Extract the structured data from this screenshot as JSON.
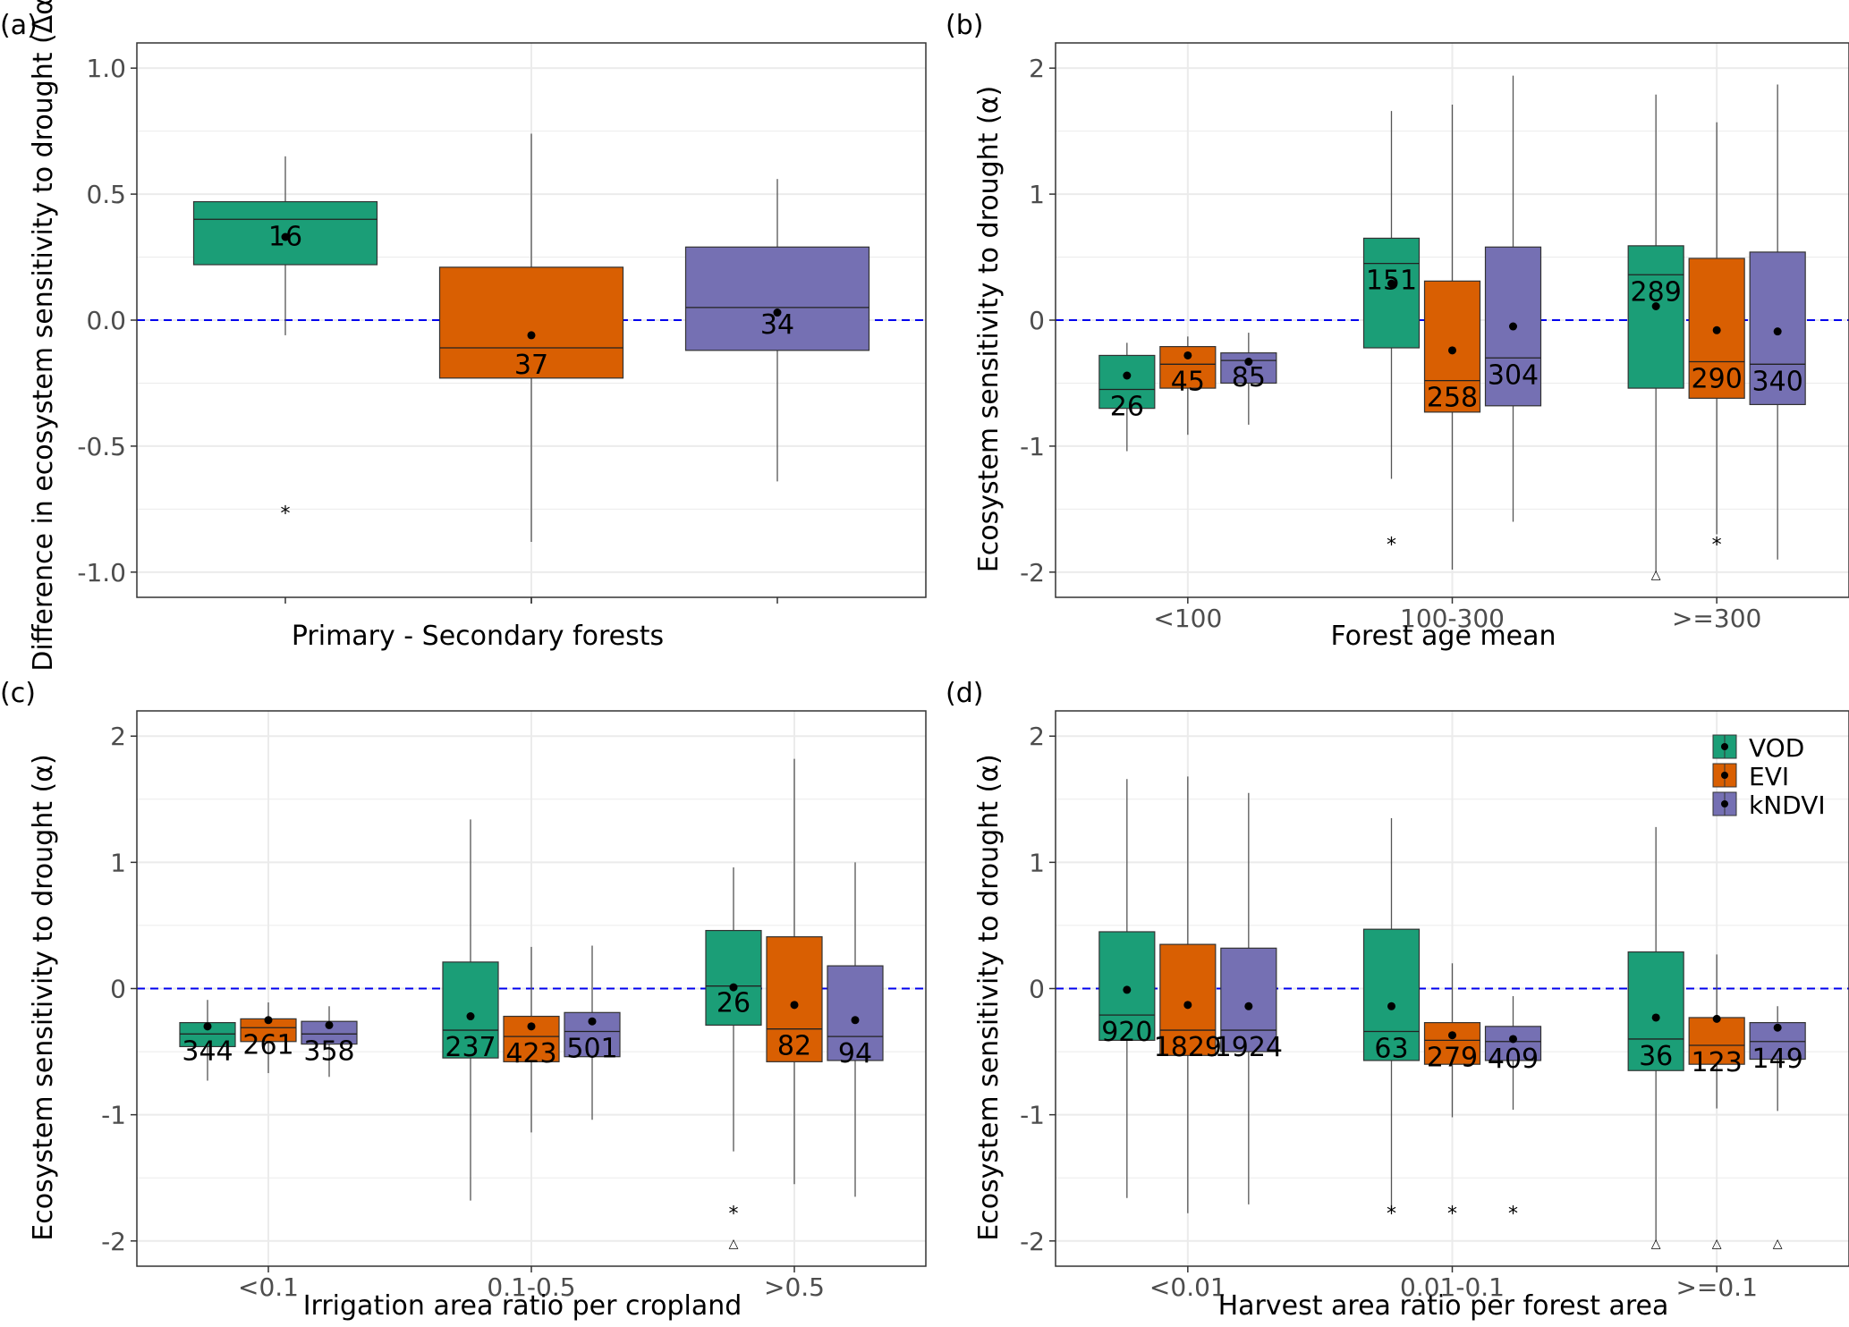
{
  "colors": {
    "VOD": "#1b9e77",
    "EVI": "#d95f02",
    "kNDVI": "#7570b3",
    "ref_line": "#0000ee",
    "grid": "#ebebeb"
  },
  "legend": {
    "items": [
      "VOD",
      "EVI",
      "kNDVI"
    ],
    "position": "top-right of panel (d)"
  },
  "chart_data": [
    {
      "id": "a",
      "type": "box",
      "panel_label": "(a)",
      "xlabel": "Primary - Secondary forests",
      "ylabel": "Difference in ecosystem sensitivity to drought (Δα)",
      "ylim": [
        -1.1,
        1.1
      ],
      "yticks": [
        1.0,
        0.5,
        0.0,
        -0.5,
        -1.0
      ],
      "ytick_labels": [
        "1.0",
        "0.5",
        "0.0",
        "-0.5",
        "-1.0"
      ],
      "reference_line": 0,
      "groups": [
        {
          "category": "",
          "boxes": [
            {
              "series": "VOD",
              "whisker_low": -0.06,
              "q1": 0.22,
              "median": 0.4,
              "q3": 0.47,
              "whisker_high": 0.65,
              "mean": 0.33,
              "n": "16",
              "outliers": [
                {
                  "y": -0.75,
                  "marker": "*"
                }
              ]
            },
            {
              "series": "EVI",
              "whisker_low": -0.88,
              "q1": -0.23,
              "median": -0.11,
              "q3": 0.21,
              "whisker_high": 0.74,
              "mean": -0.06,
              "n": "37",
              "outliers": []
            },
            {
              "series": "kNDVI",
              "whisker_low": -0.64,
              "q1": -0.12,
              "median": 0.05,
              "q3": 0.29,
              "whisker_high": 0.56,
              "mean": 0.03,
              "n": "34",
              "outliers": []
            }
          ]
        }
      ]
    },
    {
      "id": "b",
      "type": "box",
      "panel_label": "(b)",
      "xlabel": "Forest age mean",
      "ylabel": "Ecosystem sensitivity to drought (α)",
      "ylim": [
        -2.2,
        2.2
      ],
      "yticks": [
        2,
        1,
        0,
        -1,
        -2
      ],
      "ytick_labels": [
        "2",
        "1",
        "0",
        "-1",
        "-2"
      ],
      "reference_line": 0,
      "groups": [
        {
          "category": "<100",
          "boxes": [
            {
              "series": "VOD",
              "whisker_low": -1.04,
              "q1": -0.7,
              "median": -0.55,
              "q3": -0.28,
              "whisker_high": -0.18,
              "mean": -0.44,
              "n": "26",
              "outliers": []
            },
            {
              "series": "EVI",
              "whisker_low": -0.91,
              "q1": -0.54,
              "median": -0.35,
              "q3": -0.21,
              "whisker_high": -0.13,
              "mean": -0.28,
              "n": "45",
              "outliers": []
            },
            {
              "series": "kNDVI",
              "whisker_low": -0.83,
              "q1": -0.5,
              "median": -0.32,
              "q3": -0.26,
              "whisker_high": -0.1,
              "mean": -0.33,
              "n": "85",
              "outliers": []
            }
          ]
        },
        {
          "category": "100-300",
          "boxes": [
            {
              "series": "VOD",
              "whisker_low": -1.26,
              "q1": -0.22,
              "median": 0.45,
              "q3": 0.65,
              "whisker_high": 1.66,
              "mean": 0.29,
              "n": "151",
              "outliers": [
                {
                  "y": -1.75,
                  "marker": "*"
                }
              ]
            },
            {
              "series": "EVI",
              "whisker_low": -1.98,
              "q1": -0.73,
              "median": -0.48,
              "q3": 0.31,
              "whisker_high": 1.71,
              "mean": -0.24,
              "n": "258",
              "outliers": []
            },
            {
              "series": "kNDVI",
              "whisker_low": -1.6,
              "q1": -0.68,
              "median": -0.3,
              "q3": 0.58,
              "whisker_high": 1.94,
              "mean": -0.05,
              "n": "304",
              "outliers": []
            }
          ]
        },
        {
          "category": ">=300",
          "boxes": [
            {
              "series": "VOD",
              "whisker_low": -2.0,
              "q1": -0.54,
              "median": 0.36,
              "q3": 0.59,
              "whisker_high": 1.79,
              "mean": 0.11,
              "n": "289",
              "outliers": [
                {
                  "y": -2.0,
                  "marker": "△"
                }
              ]
            },
            {
              "series": "EVI",
              "whisker_low": -1.7,
              "q1": -0.62,
              "median": -0.33,
              "q3": 0.49,
              "whisker_high": 1.57,
              "mean": -0.08,
              "n": "290",
              "outliers": [
                {
                  "y": -1.75,
                  "marker": "*"
                }
              ]
            },
            {
              "series": "kNDVI",
              "whisker_low": -1.9,
              "q1": -0.67,
              "median": -0.35,
              "q3": 0.54,
              "whisker_high": 1.87,
              "mean": -0.09,
              "n": "340",
              "outliers": []
            }
          ]
        }
      ]
    },
    {
      "id": "c",
      "type": "box",
      "panel_label": "(c)",
      "xlabel": "Irrigation area ratio per cropland",
      "ylabel": "Ecosystem sensitivity to drought (α)",
      "ylim": [
        -2.2,
        2.2
      ],
      "yticks": [
        2,
        1,
        0,
        -1,
        -2
      ],
      "ytick_labels": [
        "2",
        "1",
        "0",
        "-1",
        "-2"
      ],
      "reference_line": 0,
      "groups": [
        {
          "category": "<0.1",
          "boxes": [
            {
              "series": "VOD",
              "whisker_low": -0.73,
              "q1": -0.46,
              "median": -0.36,
              "q3": -0.27,
              "whisker_high": -0.09,
              "mean": -0.3,
              "n": "344",
              "outliers": []
            },
            {
              "series": "EVI",
              "whisker_low": -0.67,
              "q1": -0.42,
              "median": -0.31,
              "q3": -0.24,
              "whisker_high": -0.11,
              "mean": -0.25,
              "n": "261",
              "outliers": []
            },
            {
              "series": "kNDVI",
              "whisker_low": -0.7,
              "q1": -0.44,
              "median": -0.36,
              "q3": -0.26,
              "whisker_high": -0.14,
              "mean": -0.29,
              "n": "358",
              "outliers": []
            }
          ]
        },
        {
          "category": "0.1-0.5",
          "boxes": [
            {
              "series": "VOD",
              "whisker_low": -1.68,
              "q1": -0.55,
              "median": -0.33,
              "q3": 0.21,
              "whisker_high": 1.34,
              "mean": -0.22,
              "n": "237",
              "outliers": []
            },
            {
              "series": "EVI",
              "whisker_low": -1.14,
              "q1": -0.58,
              "median": -0.38,
              "q3": -0.22,
              "whisker_high": 0.33,
              "mean": -0.3,
              "n": "423",
              "outliers": []
            },
            {
              "series": "kNDVI",
              "whisker_low": -1.04,
              "q1": -0.54,
              "median": -0.34,
              "q3": -0.19,
              "whisker_high": 0.34,
              "mean": -0.26,
              "n": "501",
              "outliers": []
            }
          ]
        },
        {
          "category": ">0.5",
          "boxes": [
            {
              "series": "VOD",
              "whisker_low": -1.29,
              "q1": -0.29,
              "median": 0.02,
              "q3": 0.46,
              "whisker_high": 0.96,
              "mean": 0.01,
              "n": "26",
              "outliers": [
                {
                  "y": -1.75,
                  "marker": "*"
                },
                {
                  "y": -2.0,
                  "marker": "△"
                }
              ]
            },
            {
              "series": "EVI",
              "whisker_low": -1.55,
              "q1": -0.58,
              "median": -0.32,
              "q3": 0.41,
              "whisker_high": 1.82,
              "mean": -0.13,
              "n": "82",
              "outliers": []
            },
            {
              "series": "kNDVI",
              "whisker_low": -1.65,
              "q1": -0.57,
              "median": -0.38,
              "q3": 0.18,
              "whisker_high": 1.0,
              "mean": -0.25,
              "n": "94",
              "outliers": []
            }
          ]
        }
      ]
    },
    {
      "id": "d",
      "type": "box",
      "panel_label": "(d)",
      "xlabel": "Harvest area ratio per forest area",
      "ylabel": "Ecosystem sensitivity to drought (α)",
      "ylim": [
        -2.2,
        2.2
      ],
      "yticks": [
        2,
        1,
        0,
        -1,
        -2
      ],
      "ytick_labels": [
        "2",
        "1",
        "0",
        "-1",
        "-2"
      ],
      "reference_line": 0,
      "groups": [
        {
          "category": "<0.01",
          "boxes": [
            {
              "series": "VOD",
              "whisker_low": -1.66,
              "q1": -0.41,
              "median": -0.21,
              "q3": 0.45,
              "whisker_high": 1.66,
              "mean": -0.01,
              "n": "920",
              "outliers": []
            },
            {
              "series": "EVI",
              "whisker_low": -1.78,
              "q1": -0.53,
              "median": -0.33,
              "q3": 0.35,
              "whisker_high": 1.68,
              "mean": -0.13,
              "n": "1829",
              "outliers": []
            },
            {
              "series": "kNDVI",
              "whisker_low": -1.71,
              "q1": -0.5,
              "median": -0.33,
              "q3": 0.32,
              "whisker_high": 1.55,
              "mean": -0.14,
              "n": "1924",
              "outliers": []
            }
          ]
        },
        {
          "category": "0.01-0.1",
          "boxes": [
            {
              "series": "VOD",
              "whisker_low": -1.75,
              "q1": -0.57,
              "median": -0.34,
              "q3": 0.47,
              "whisker_high": 1.35,
              "mean": -0.14,
              "n": "63",
              "outliers": [
                {
                  "y": -1.75,
                  "marker": "*"
                }
              ]
            },
            {
              "series": "EVI",
              "whisker_low": -1.02,
              "q1": -0.6,
              "median": -0.41,
              "q3": -0.27,
              "whisker_high": 0.2,
              "mean": -0.37,
              "n": "279",
              "outliers": [
                {
                  "y": -1.75,
                  "marker": "*"
                }
              ]
            },
            {
              "series": "kNDVI",
              "whisker_low": -0.96,
              "q1": -0.57,
              "median": -0.42,
              "q3": -0.3,
              "whisker_high": -0.06,
              "mean": -0.4,
              "n": "409",
              "outliers": [
                {
                  "y": -1.75,
                  "marker": "*"
                }
              ]
            }
          ]
        },
        {
          "category": ">=0.1",
          "boxes": [
            {
              "series": "VOD",
              "whisker_low": -2.0,
              "q1": -0.65,
              "median": -0.4,
              "q3": 0.29,
              "whisker_high": 1.28,
              "mean": -0.23,
              "n": "36",
              "outliers": [
                {
                  "y": -2.0,
                  "marker": "△"
                }
              ]
            },
            {
              "series": "EVI",
              "whisker_low": -0.95,
              "q1": -0.6,
              "median": -0.45,
              "q3": -0.23,
              "whisker_high": 0.27,
              "mean": -0.24,
              "n": "123",
              "outliers": [
                {
                  "y": -2.0,
                  "marker": "△"
                }
              ]
            },
            {
              "series": "kNDVI",
              "whisker_low": -0.97,
              "q1": -0.56,
              "median": -0.42,
              "q3": -0.27,
              "whisker_high": -0.14,
              "mean": -0.31,
              "n": "149",
              "outliers": [
                {
                  "y": -2.0,
                  "marker": "△"
                }
              ]
            }
          ]
        }
      ]
    }
  ]
}
